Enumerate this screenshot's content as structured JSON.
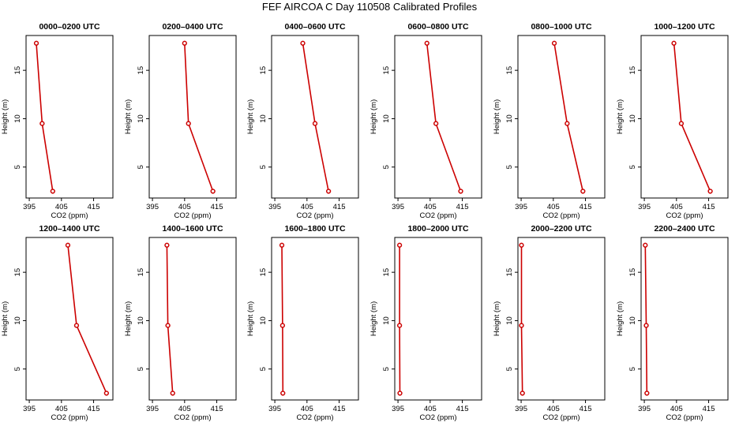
{
  "title": "FEF AIRCOA C  Day 110508  Calibrated Profiles",
  "colors": {
    "line": "#cc0000",
    "marker": "#cc0000",
    "axis": "#000000"
  },
  "chart_data": [
    {
      "type": "line",
      "title": "0000–0200 UTC",
      "xlabel": "CO2 (ppm)",
      "ylabel": "Height (m)",
      "xlim": [
        394,
        421
      ],
      "ylim": [
        1.8,
        18.6
      ],
      "xticks": [
        395,
        405,
        415
      ],
      "yticks": [
        5,
        10,
        15
      ],
      "series": [
        {
          "x": [
            402.3,
            399.0,
            397.2
          ],
          "y": [
            2.5,
            9.5,
            17.8
          ]
        }
      ]
    },
    {
      "type": "line",
      "title": "0200–0400 UTC",
      "xlabel": "CO2 (ppm)",
      "ylabel": "Height (m)",
      "xlim": [
        394,
        421
      ],
      "ylim": [
        1.8,
        18.6
      ],
      "xticks": [
        395,
        405,
        415
      ],
      "yticks": [
        5,
        10,
        15
      ],
      "series": [
        {
          "x": [
            413.8,
            406.2,
            405.0
          ],
          "y": [
            2.5,
            9.5,
            17.8
          ]
        }
      ]
    },
    {
      "type": "line",
      "title": "0400–0600 UTC",
      "xlabel": "CO2 (ppm)",
      "ylabel": "Height (m)",
      "xlim": [
        394,
        421
      ],
      "ylim": [
        1.8,
        18.6
      ],
      "xticks": [
        395,
        405,
        415
      ],
      "yticks": [
        5,
        10,
        15
      ],
      "series": [
        {
          "x": [
            411.7,
            407.5,
            403.7
          ],
          "y": [
            2.5,
            9.5,
            17.8
          ]
        }
      ]
    },
    {
      "type": "line",
      "title": "0600–0800 UTC",
      "xlabel": "CO2 (ppm)",
      "ylabel": "Height (m)",
      "xlim": [
        394,
        421
      ],
      "ylim": [
        1.8,
        18.6
      ],
      "xticks": [
        395,
        405,
        415
      ],
      "yticks": [
        5,
        10,
        15
      ],
      "series": [
        {
          "x": [
            414.5,
            406.8,
            404.0
          ],
          "y": [
            2.5,
            9.5,
            17.8
          ]
        }
      ]
    },
    {
      "type": "line",
      "title": "0800–1000 UTC",
      "xlabel": "CO2 (ppm)",
      "ylabel": "Height (m)",
      "xlim": [
        394,
        421
      ],
      "ylim": [
        1.8,
        18.6
      ],
      "xticks": [
        395,
        405,
        415
      ],
      "yticks": [
        5,
        10,
        15
      ],
      "series": [
        {
          "x": [
            414.2,
            409.3,
            405.3
          ],
          "y": [
            2.5,
            9.5,
            17.8
          ]
        }
      ]
    },
    {
      "type": "line",
      "title": "1000–1200 UTC",
      "xlabel": "CO2 (ppm)",
      "ylabel": "Height (m)",
      "xlim": [
        394,
        421
      ],
      "ylim": [
        1.8,
        18.6
      ],
      "xticks": [
        395,
        405,
        415
      ],
      "yticks": [
        5,
        10,
        15
      ],
      "series": [
        {
          "x": [
            415.5,
            406.5,
            404.2
          ],
          "y": [
            2.5,
            9.5,
            17.8
          ]
        }
      ]
    },
    {
      "type": "line",
      "title": "1200–1400 UTC",
      "xlabel": "CO2 (ppm)",
      "ylabel": "Height (m)",
      "xlim": [
        394,
        421
      ],
      "ylim": [
        1.8,
        18.6
      ],
      "xticks": [
        395,
        405,
        415
      ],
      "yticks": [
        5,
        10,
        15
      ],
      "series": [
        {
          "x": [
            419.0,
            409.7,
            407.0
          ],
          "y": [
            2.5,
            9.5,
            17.8
          ]
        }
      ]
    },
    {
      "type": "line",
      "title": "1400–1600 UTC",
      "xlabel": "CO2 (ppm)",
      "ylabel": "Height (m)",
      "xlim": [
        394,
        421
      ],
      "ylim": [
        1.8,
        18.6
      ],
      "xticks": [
        395,
        405,
        415
      ],
      "yticks": [
        5,
        10,
        15
      ],
      "series": [
        {
          "x": [
            401.3,
            399.8,
            399.5
          ],
          "y": [
            2.5,
            9.5,
            17.8
          ]
        }
      ]
    },
    {
      "type": "line",
      "title": "1600–1800 UTC",
      "xlabel": "CO2 (ppm)",
      "ylabel": "Height (m)",
      "xlim": [
        394,
        421
      ],
      "ylim": [
        1.8,
        18.6
      ],
      "xticks": [
        395,
        405,
        415
      ],
      "yticks": [
        5,
        10,
        15
      ],
      "series": [
        {
          "x": [
            397.5,
            397.4,
            397.2
          ],
          "y": [
            2.5,
            9.5,
            17.8
          ]
        }
      ]
    },
    {
      "type": "line",
      "title": "1800–2000 UTC",
      "xlabel": "CO2 (ppm)",
      "ylabel": "Height (m)",
      "xlim": [
        394,
        421
      ],
      "ylim": [
        1.8,
        18.6
      ],
      "xticks": [
        395,
        405,
        415
      ],
      "yticks": [
        5,
        10,
        15
      ],
      "series": [
        {
          "x": [
            395.6,
            395.5,
            395.5
          ],
          "y": [
            2.5,
            9.5,
            17.8
          ]
        }
      ]
    },
    {
      "type": "line",
      "title": "2000–2200 UTC",
      "xlabel": "CO2 (ppm)",
      "ylabel": "Height (m)",
      "xlim": [
        394,
        421
      ],
      "ylim": [
        1.8,
        18.6
      ],
      "xticks": [
        395,
        405,
        415
      ],
      "yticks": [
        5,
        10,
        15
      ],
      "series": [
        {
          "x": [
            395.4,
            395.1,
            395.1
          ],
          "y": [
            2.5,
            9.5,
            17.8
          ]
        }
      ]
    },
    {
      "type": "line",
      "title": "2200–2400 UTC",
      "xlabel": "CO2 (ppm)",
      "ylabel": "Height (m)",
      "xlim": [
        394,
        421
      ],
      "ylim": [
        1.8,
        18.6
      ],
      "xticks": [
        395,
        405,
        415
      ],
      "yticks": [
        5,
        10,
        15
      ],
      "series": [
        {
          "x": [
            395.8,
            395.6,
            395.3
          ],
          "y": [
            2.5,
            9.5,
            17.8
          ]
        }
      ]
    }
  ]
}
